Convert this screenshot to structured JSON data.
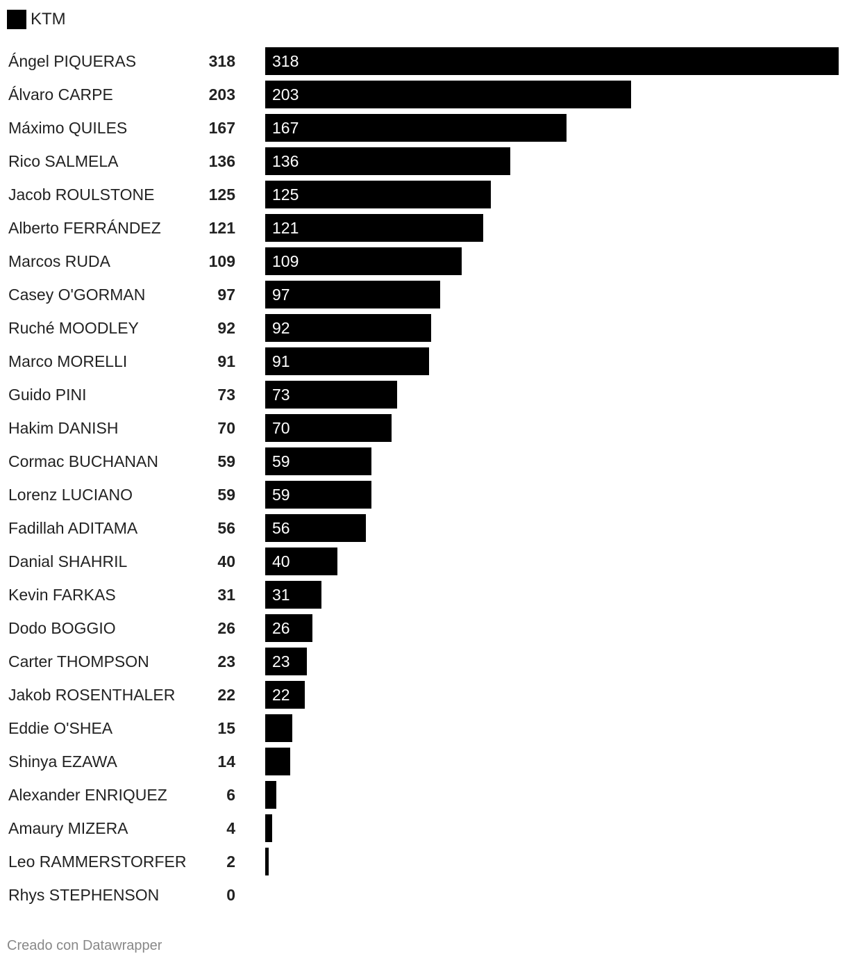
{
  "legend": {
    "label": "KTM",
    "color": "#000000"
  },
  "footer": {
    "credit": "Creado con Datawrapper"
  },
  "chart_data": {
    "type": "bar",
    "orientation": "horizontal",
    "xlim": [
      0,
      318
    ],
    "grid": false,
    "legend_position": "top-left",
    "series": [
      {
        "name": "KTM",
        "color": "#000000"
      }
    ],
    "categories": [
      "Ángel PIQUERAS",
      "Álvaro CARPE",
      "Máximo QUILES",
      "Rico SALMELA",
      "Jacob ROULSTONE",
      "Alberto FERRÁNDEZ",
      "Marcos RUDA",
      "Casey O'GORMAN",
      "Ruché MOODLEY",
      "Marco MORELLI",
      "Guido PINI",
      "Hakim DANISH",
      "Cormac BUCHANAN",
      "Lorenz LUCIANO",
      "Fadillah ADITAMA",
      "Danial SHAHRIL",
      "Kevin FARKAS",
      "Dodo BOGGIO",
      "Carter THOMPSON",
      "Jakob ROSENTHALER",
      "Eddie O'SHEA",
      "Shinya EZAWA",
      "Alexander ENRIQUEZ",
      "Amaury MIZERA",
      "Leo RAMMERSTORFER",
      "Rhys STEPHENSON"
    ],
    "values": [
      318,
      203,
      167,
      136,
      125,
      121,
      109,
      97,
      92,
      91,
      73,
      70,
      59,
      59,
      56,
      40,
      31,
      26,
      23,
      22,
      15,
      14,
      6,
      4,
      2,
      0
    ],
    "bar_labels": [
      "318",
      "203",
      "167",
      "136",
      "125",
      "121",
      "109",
      "97",
      "92",
      "91",
      "73",
      "70",
      "59",
      "59",
      "56",
      "40",
      "31",
      "26",
      "23",
      "22",
      "",
      "",
      "",
      "",
      "",
      ""
    ]
  }
}
